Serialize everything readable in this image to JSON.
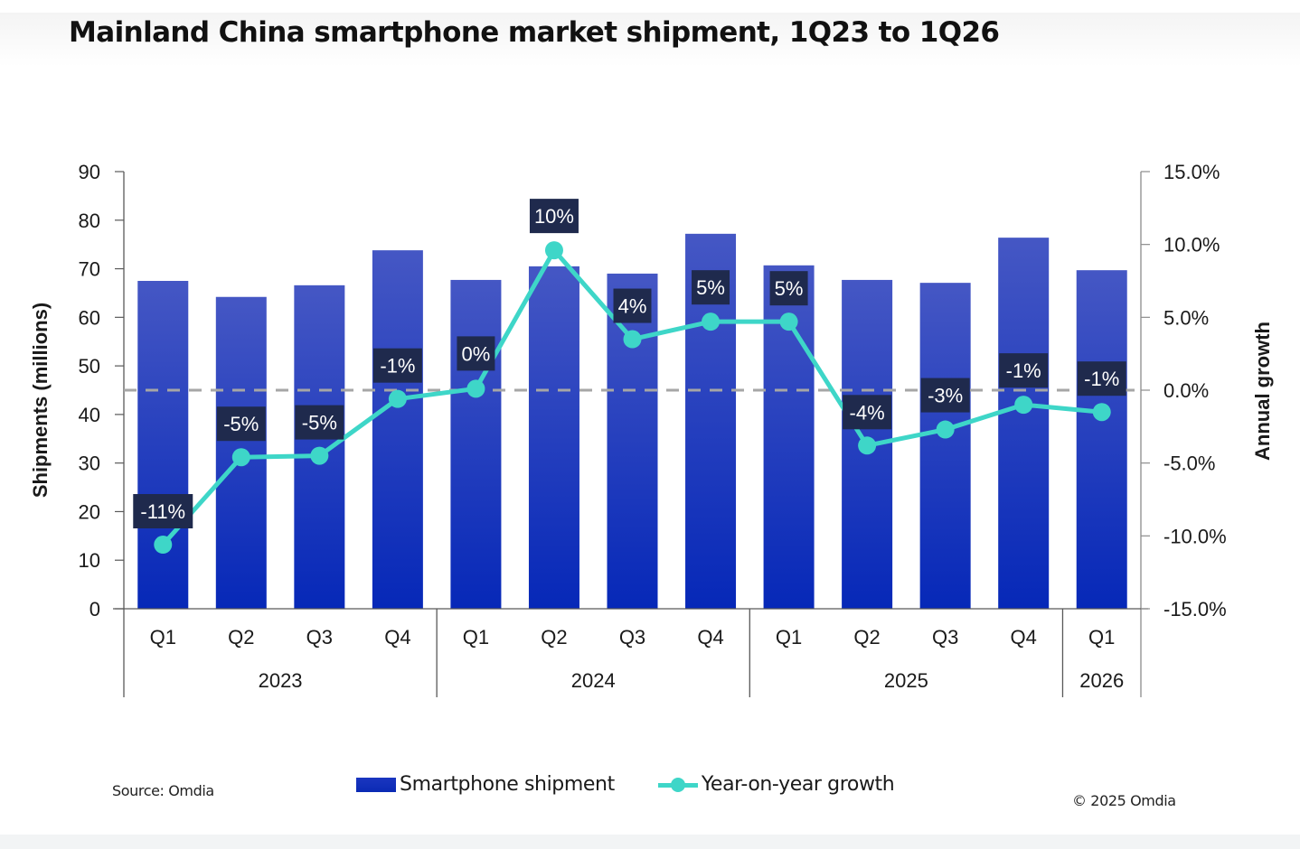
{
  "title": "Mainland China smartphone market shipment, 1Q23 to 1Q26",
  "source": "Source: Omdia",
  "copyright": "© 2025 Omdia",
  "legend": {
    "bar_label": "Smartphone shipment",
    "line_label": "Year-on-year growth"
  },
  "colors": {
    "bar_top": "#4557c4",
    "bar_bottom": "#0628b8",
    "line": "#3ed6c8",
    "label_box": "#1f2a4d",
    "zero_line": "#a6a6a6"
  },
  "chart_data": {
    "type": "bar",
    "title": "Mainland China smartphone market shipment, 1Q23 to 1Q26",
    "xlabel": "",
    "ylabel": "Shipments (millions)",
    "y2label": "Annual growth",
    "ylim": [
      0,
      90
    ],
    "yticks": [
      "0",
      "10",
      "20",
      "30",
      "40",
      "50",
      "60",
      "70",
      "80",
      "90"
    ],
    "y2lim": [
      -15,
      15
    ],
    "y2ticks": [
      "-15.0%",
      "-10.0%",
      "-5.0%",
      "0.0%",
      "5.0%",
      "10.0%",
      "15.0%"
    ],
    "grid": false,
    "legend_position": "bottom",
    "categories": [
      "Q1",
      "Q2",
      "Q3",
      "Q4",
      "Q1",
      "Q2",
      "Q3",
      "Q4",
      "Q1",
      "Q2",
      "Q3",
      "Q4",
      "Q1"
    ],
    "groups": [
      {
        "label": "2023",
        "count": 4
      },
      {
        "label": "2024",
        "count": 4
      },
      {
        "label": "2025",
        "count": 4
      },
      {
        "label": "2026",
        "count": 1
      }
    ],
    "series": [
      {
        "name": "Smartphone shipment",
        "type": "bar",
        "axis": "left",
        "values": [
          67.5,
          64.2,
          66.6,
          73.8,
          67.7,
          70.5,
          69.0,
          77.2,
          70.7,
          67.7,
          67.1,
          76.4,
          69.7
        ]
      },
      {
        "name": "Year-on-year growth",
        "type": "line",
        "axis": "right",
        "values": [
          -10.6,
          -4.6,
          -4.5,
          -0.6,
          0.1,
          9.6,
          3.5,
          4.7,
          4.7,
          -3.8,
          -2.7,
          -1.0,
          -1.5
        ],
        "labels": [
          "-11%",
          "-5%",
          "-5%",
          "-1%",
          "0%",
          "10%",
          "4%",
          "5%",
          "5%",
          "-4%",
          "-3%",
          "-1%",
          "-1%"
        ]
      }
    ]
  }
}
